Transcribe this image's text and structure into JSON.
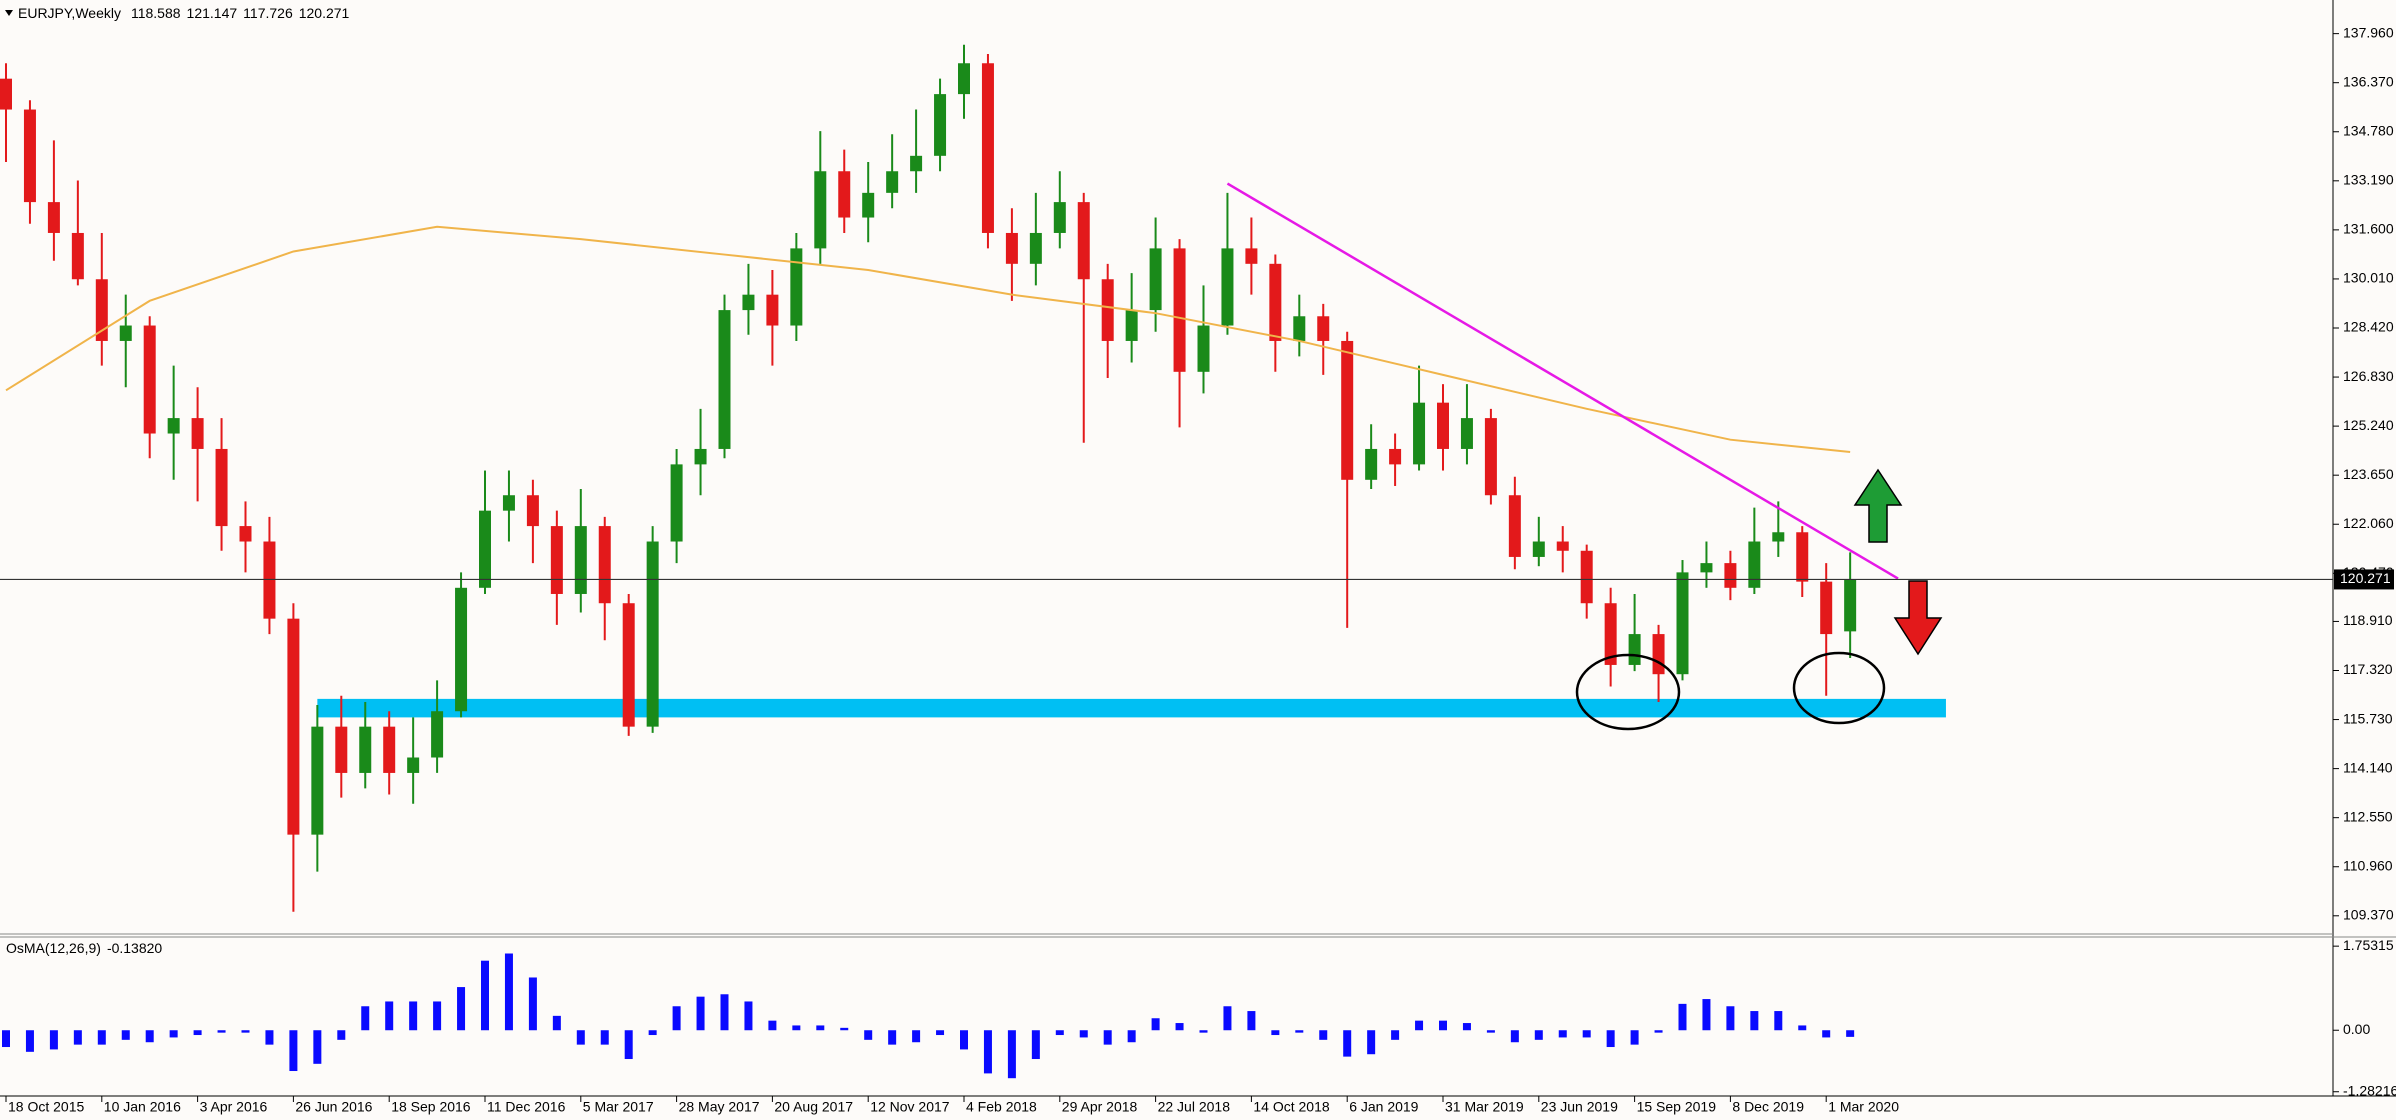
{
  "chart_data": [
    {
      "type": "candlestick",
      "title": "EURJPY,Weekly",
      "categories": [
        "18 Oct 2015",
        null,
        null,
        null,
        "10 Jan 2016",
        null,
        null,
        null,
        "3 Apr 2016",
        null,
        null,
        null,
        "26 Jun 2016",
        null,
        null,
        null,
        "18 Sep 2016",
        null,
        null,
        null,
        "11 Dec 2016",
        null,
        null,
        null,
        "5 Mar 2017",
        null,
        null,
        null,
        "28 May 2017",
        null,
        null,
        null,
        "20 Aug 2017",
        null,
        null,
        null,
        "12 Nov 2017",
        null,
        null,
        null,
        "4 Feb 2018",
        null,
        null,
        null,
        "29 Apr 2018",
        null,
        null,
        null,
        "22 Jul 2018",
        null,
        null,
        null,
        "14 Oct 2018",
        null,
        null,
        null,
        "6 Jan 2019",
        null,
        null,
        null,
        "31 Mar 2019",
        null,
        null,
        null,
        "23 Jun 2019",
        null,
        null,
        null,
        "15 Sep 2019",
        null,
        null,
        null,
        "8 Dec 2019",
        null,
        null,
        null,
        "1 Mar 2020",
        null
      ],
      "open": [
        136.5,
        135.5,
        132.5,
        131.5,
        130,
        128,
        128.5,
        125,
        125.5,
        124.5,
        122,
        121.5,
        119,
        112,
        115.5,
        114,
        115.5,
        114,
        114.5,
        116,
        120,
        122.5,
        123,
        122,
        119.8,
        122,
        119.5,
        115.5,
        121.5,
        124,
        124.5,
        129,
        129.5,
        128.5,
        131,
        133.5,
        132,
        132.8,
        133.5,
        134,
        136,
        137,
        131.5,
        130.5,
        131.5,
        132.5,
        130,
        128,
        129,
        131,
        127,
        128.5,
        131,
        130.5,
        128,
        128.8,
        128,
        123.5,
        124.5,
        124,
        126,
        124.5,
        125.5,
        123,
        121,
        121.5,
        121.2,
        119.5,
        117.5,
        118.5,
        117.2,
        120.5,
        120.8,
        120,
        121.5,
        121.8,
        120.2,
        118.588
      ],
      "high": [
        137,
        135.8,
        134.5,
        133.2,
        131.5,
        129.5,
        128.8,
        127.2,
        126.5,
        125.5,
        122.8,
        122.3,
        119.5,
        116.2,
        116.5,
        116.3,
        116,
        115.8,
        117,
        120.5,
        123.8,
        123.8,
        123.5,
        122.5,
        123.2,
        122.3,
        119.8,
        122,
        124.5,
        125.8,
        129.5,
        130.5,
        130.3,
        131.5,
        134.8,
        134.2,
        133.8,
        134.7,
        135.5,
        136.5,
        137.6,
        137.3,
        132.3,
        132.8,
        133.5,
        132.8,
        130.5,
        130.2,
        132,
        131.3,
        129.8,
        132.8,
        132,
        130.8,
        129.5,
        129.2,
        128.3,
        125.3,
        125,
        127.2,
        126.6,
        126.6,
        125.8,
        123.6,
        122.3,
        122,
        121.4,
        120,
        119.8,
        118.8,
        120.9,
        121.5,
        121.2,
        122.6,
        122.8,
        122,
        120.8,
        121.147
      ],
      "low": [
        133.8,
        131.8,
        130.6,
        129.8,
        127.2,
        126.5,
        124.2,
        123.5,
        122.8,
        121.2,
        120.5,
        118.5,
        109.5,
        110.8,
        113.2,
        113.5,
        113.3,
        113,
        114,
        115.8,
        119.8,
        121.5,
        120.8,
        118.8,
        119.2,
        118.3,
        115.2,
        115.3,
        120.8,
        123,
        124.2,
        128.2,
        127.2,
        128,
        130.5,
        131.5,
        131.2,
        132.3,
        132.8,
        133.5,
        135.2,
        131,
        129.3,
        129.8,
        131,
        124.7,
        126.8,
        127.3,
        128.3,
        125.2,
        126.3,
        128.2,
        129.5,
        127,
        127.5,
        126.9,
        118.7,
        123.2,
        123.3,
        123.8,
        123.8,
        124,
        122.7,
        120.6,
        120.7,
        120.5,
        119,
        116.8,
        117.3,
        116.3,
        117,
        120,
        119.6,
        119.8,
        121,
        119.7,
        116.5,
        117.726
      ],
      "close": [
        135.5,
        132.5,
        131.5,
        130,
        128,
        128.5,
        125,
        125.5,
        124.5,
        122,
        121.5,
        119,
        112,
        115.5,
        114,
        115.5,
        114,
        114.5,
        116,
        120,
        122.5,
        123,
        122,
        119.8,
        122,
        119.5,
        115.5,
        121.5,
        124,
        124.5,
        129,
        129.5,
        128.5,
        131,
        133.5,
        132,
        132.8,
        133.5,
        134,
        136,
        137,
        131.5,
        130.5,
        131.5,
        132.5,
        130,
        128,
        129,
        131,
        127,
        128.5,
        131,
        130.5,
        128,
        128.8,
        128,
        123.5,
        124.5,
        124,
        126,
        124.5,
        125.5,
        123,
        121,
        121.5,
        121.2,
        119.5,
        117.5,
        118.5,
        117.2,
        120.5,
        120.8,
        120,
        121.5,
        121.8,
        120.2,
        118.5,
        120.271
      ],
      "up_color": "#1a8a1a",
      "down_color": "#e3191b",
      "ylim": [
        108.78,
        139.05
      ],
      "yticks": [
        {
          "value": 137.96,
          "label": "137.960"
        },
        {
          "value": 136.37,
          "label": "136.370"
        },
        {
          "value": 134.78,
          "label": "134.780"
        },
        {
          "value": 133.19,
          "label": "133.190"
        },
        {
          "value": 131.6,
          "label": "131.600"
        },
        {
          "value": 130.01,
          "label": "130.010"
        },
        {
          "value": 128.42,
          "label": "128.420"
        },
        {
          "value": 126.83,
          "label": "126.830"
        },
        {
          "value": 125.24,
          "label": "125.240"
        },
        {
          "value": 123.65,
          "label": "123.650"
        },
        {
          "value": 122.06,
          "label": "122.060"
        },
        {
          "value": 120.47,
          "label": "120.470"
        },
        {
          "value": 118.91,
          "label": "118.910"
        },
        {
          "value": 117.32,
          "label": "117.320"
        },
        {
          "value": 115.73,
          "label": "115.730"
        },
        {
          "value": 114.14,
          "label": "114.140"
        },
        {
          "value": 112.55,
          "label": "112.550"
        },
        {
          "value": 110.96,
          "label": "110.960"
        },
        {
          "value": 109.37,
          "label": "109.370"
        }
      ],
      "moving_average": {
        "x": [
          0,
          6,
          12,
          18,
          24,
          30,
          36,
          42,
          48,
          54,
          60,
          66,
          72,
          77
        ],
        "values": [
          126.4,
          129.3,
          130.9,
          131.7,
          131.3,
          130.8,
          130.3,
          129.5,
          128.9,
          128.0,
          126.9,
          125.8,
          124.8,
          124.4
        ],
        "color": "#f0b44a"
      },
      "trendline": {
        "x": [
          51,
          79
        ],
        "values": [
          133.1,
          120.3
        ],
        "color": "#e619e6"
      },
      "support_zone": {
        "x": [
          13,
          81
        ],
        "values": [
          116.4,
          115.8
        ],
        "color": "#00bff3"
      }
    },
    {
      "type": "bar",
      "title": "OsMA(12,26,9)",
      "current_value_label": "-0.13820",
      "color": "#0a0aff",
      "values": [
        -0.35,
        -0.45,
        -0.4,
        -0.3,
        -0.3,
        -0.2,
        -0.25,
        -0.15,
        -0.1,
        -0.05,
        -0.05,
        -0.3,
        -0.85,
        -0.7,
        -0.2,
        0.5,
        0.6,
        0.6,
        0.6,
        0.9,
        1.45,
        1.6,
        1.1,
        0.3,
        -0.3,
        -0.3,
        -0.6,
        -0.1,
        0.5,
        0.7,
        0.75,
        0.6,
        0.2,
        0.1,
        0.1,
        0.05,
        -0.2,
        -0.3,
        -0.25,
        -0.1,
        -0.4,
        -0.9,
        -1.0,
        -0.6,
        -0.1,
        -0.15,
        -0.3,
        -0.25,
        0.25,
        0.15,
        -0.05,
        0.5,
        0.4,
        -0.1,
        -0.05,
        -0.2,
        -0.55,
        -0.5,
        -0.2,
        0.2,
        0.2,
        0.15,
        -0.05,
        -0.25,
        -0.2,
        -0.15,
        -0.15,
        -0.35,
        -0.3,
        -0.05,
        0.55,
        0.65,
        0.5,
        0.4,
        0.4,
        0.1,
        -0.15,
        -0.1382
      ],
      "ylim": [
        -1.371,
        1.944
      ],
      "yticks": [
        1.75315,
        {
          "value": 0,
          "label": "0.00"
        },
        -1.28216
      ]
    }
  ]
}
